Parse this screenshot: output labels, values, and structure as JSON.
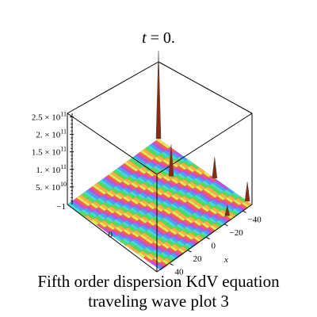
{
  "chart_data": {
    "type": "surface3d",
    "title": "t = 0.",
    "caption_line1": "Fifth order dispersion KdV  equation",
    "caption_line2": "traveling wave plot 3",
    "x_axis": {
      "label": "x",
      "range": [
        -50,
        50
      ],
      "ticks": [
        {
          "value": -40,
          "label": "−40"
        },
        {
          "value": -20,
          "label": "−20"
        },
        {
          "value": 0,
          "label": "0"
        },
        {
          "value": 20,
          "label": "20"
        },
        {
          "value": 40,
          "label": "40"
        }
      ]
    },
    "y_axis": {
      "label": "",
      "range": [
        -1,
        1
      ],
      "ticks": [
        {
          "value": -1,
          "label": "−1"
        },
        {
          "value": 0,
          "label": "0"
        }
      ]
    },
    "z_axis": {
      "label": "",
      "range": [
        0,
        260000000000
      ],
      "ticks": [
        {
          "value": 50000000000,
          "label": "5. × 10",
          "exp": "10"
        },
        {
          "value": 100000000000,
          "label": "1. × 10",
          "exp": "11"
        },
        {
          "value": 150000000000,
          "label": "1.5 × 10",
          "exp": "11"
        },
        {
          "value": 200000000000,
          "label": "2. × 10",
          "exp": "11"
        },
        {
          "value": 250000000000,
          "label": "2.5 × 10",
          "exp": "11"
        }
      ]
    },
    "spikes": [
      {
        "x": -50,
        "y": -1,
        "z": 250000000000
      },
      {
        "x": -50,
        "y": 0.2,
        "z": 60000000000
      },
      {
        "x": -50,
        "y": 0.9,
        "z": 55000000000
      },
      {
        "x": -28,
        "y": -0.3,
        "z": 90000000000
      },
      {
        "x": -28,
        "y": 0.9,
        "z": 30000000000
      }
    ],
    "stripe_colors": [
      "#e8e84a",
      "#ff5a5a",
      "#c050e0",
      "#4aa0ff",
      "#40e0d0",
      "#50e050",
      "#ffb040"
    ]
  }
}
